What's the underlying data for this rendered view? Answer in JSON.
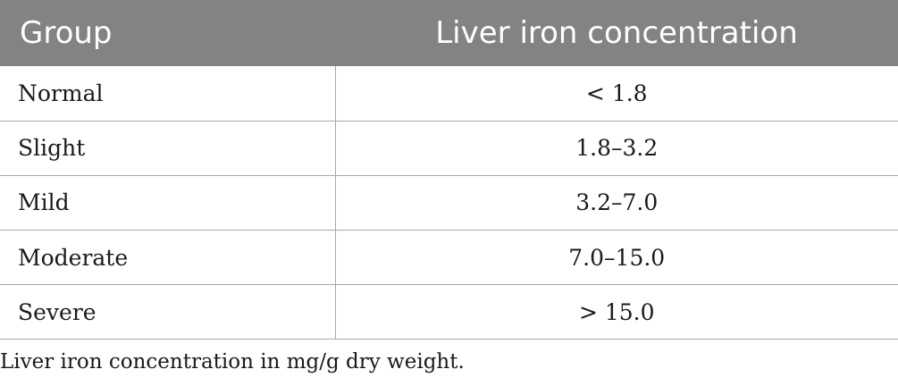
{
  "table": {
    "headers": {
      "group": "Group",
      "value": "Liver iron concentration"
    },
    "rows": [
      {
        "group": "Normal",
        "value": "< 1.8"
      },
      {
        "group": "Slight",
        "value": "1.8–3.2"
      },
      {
        "group": "Mild",
        "value": "3.2–7.0"
      },
      {
        "group": "Moderate",
        "value": "7.0–15.0"
      },
      {
        "group": "Severe",
        "value": "> 15.0"
      }
    ]
  },
  "footnote": "Liver iron concentration in mg/g dry weight.",
  "colors": {
    "header_bg": "#838383",
    "header_text": "#ffffff",
    "rule": "#a8a8a8"
  }
}
